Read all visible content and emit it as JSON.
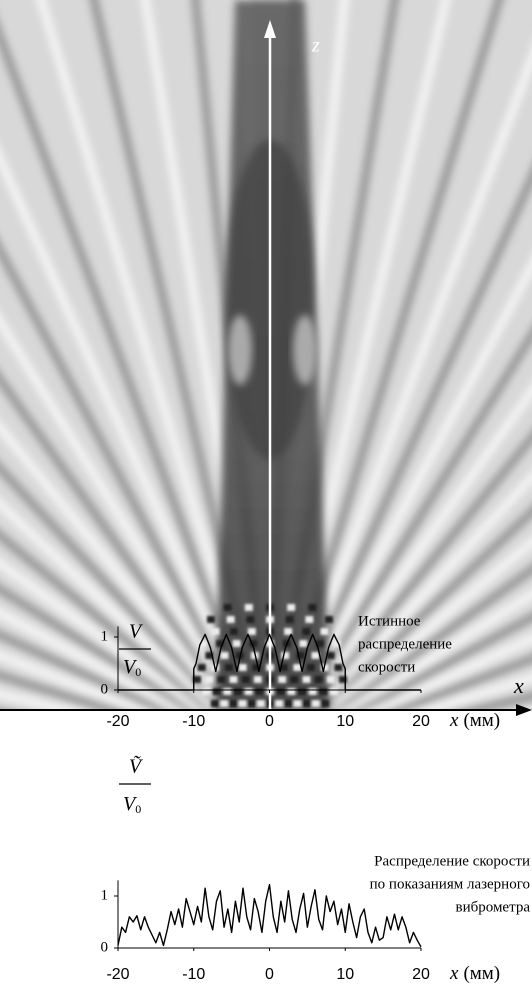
{
  "field_image": {
    "z_label": "z",
    "x_label": "x"
  },
  "chart_data": [
    {
      "type": "line",
      "y_label_numerator": "V",
      "y_label_denominator": "V",
      "y_label_subscript": "0",
      "x_label": "x",
      "x_unit": "(мм)",
      "annotation": [
        "Истинное",
        "распределение",
        "скорости"
      ],
      "xlim": [
        -20,
        20
      ],
      "xticks": [
        -20,
        -10,
        0,
        10,
        20
      ],
      "ylim": [
        0,
        1.2
      ],
      "yticks": [
        0,
        1
      ],
      "series": [
        {
          "color": "#000000",
          "x": [
            -20,
            -10,
            -10,
            -9.7,
            -9.2,
            -8.5,
            -7.8,
            -7.1,
            -6.4,
            -5.7,
            -5,
            -4.3,
            -3.6,
            -2.85,
            -2.1,
            -1.4,
            -0.7,
            0,
            0.7,
            1.4,
            2.1,
            2.85,
            3.6,
            4.3,
            5,
            5.7,
            6.4,
            7.1,
            7.8,
            8.5,
            9.2,
            9.7,
            10,
            10,
            20
          ],
          "values": [
            0,
            0,
            0.4,
            0.5,
            0.85,
            1.05,
            0.8,
            0.35,
            0.8,
            1.05,
            0.8,
            0.35,
            0.8,
            1.05,
            0.8,
            0.35,
            0.8,
            1.05,
            0.8,
            0.35,
            0.8,
            1.05,
            0.8,
            0.35,
            0.8,
            1.05,
            0.8,
            0.35,
            0.8,
            1.05,
            0.85,
            0.5,
            0.4,
            0,
            0
          ]
        }
      ]
    },
    {
      "type": "line",
      "y_label_numerator": "Ṽ",
      "y_label_denominator": "V",
      "y_label_subscript": "0",
      "x_label": "x",
      "x_unit": "(мм)",
      "annotation": [
        "Распределение скорости",
        "по показаниям лазерного",
        "виброметра"
      ],
      "xlim": [
        -20,
        20
      ],
      "xticks": [
        -20,
        -10,
        0,
        10,
        20
      ],
      "ylim": [
        0,
        1.3
      ],
      "yticks": [
        0,
        1
      ],
      "series": [
        {
          "color": "#000000",
          "x": [
            -20,
            -19.5,
            -19,
            -18.5,
            -18,
            -17.5,
            -17,
            -16.5,
            -16,
            -15.5,
            -15,
            -14.5,
            -14,
            -13.5,
            -13,
            -12.5,
            -12,
            -11.5,
            -11,
            -10.5,
            -10,
            -9.5,
            -9,
            -8.5,
            -8,
            -7.5,
            -7,
            -6.5,
            -6,
            -5.5,
            -5,
            -4.5,
            -4,
            -3.5,
            -3,
            -2.5,
            -2,
            -1.5,
            -1,
            -0.5,
            0,
            0.5,
            1,
            1.5,
            2,
            2.5,
            3,
            3.5,
            4,
            4.5,
            5,
            5.5,
            6,
            6.5,
            7,
            7.5,
            8,
            8.5,
            9,
            9.5,
            10,
            10.5,
            11,
            11.5,
            12,
            12.5,
            13,
            13.5,
            14,
            14.5,
            15,
            15.5,
            16,
            16.5,
            17,
            17.5,
            18,
            18.5,
            19,
            19.5,
            20
          ],
          "values": [
            0.05,
            0.4,
            0.3,
            0.6,
            0.5,
            0.62,
            0.35,
            0.6,
            0.4,
            0.25,
            0.1,
            0.3,
            0.05,
            0.35,
            0.7,
            0.45,
            0.75,
            0.4,
            0.95,
            0.7,
            0.45,
            0.8,
            0.5,
            1.15,
            0.6,
            0.35,
            0.9,
            1.1,
            0.4,
            0.75,
            0.3,
            0.9,
            0.5,
            1.15,
            0.6,
            0.35,
            0.95,
            0.7,
            0.3,
            0.9,
            1.22,
            0.6,
            0.3,
            0.9,
            0.5,
            1.1,
            0.55,
            0.3,
            0.75,
            1.05,
            0.4,
            0.8,
            1.12,
            0.55,
            0.35,
            1.0,
            0.7,
            0.9,
            0.45,
            0.75,
            0.3,
            0.85,
            0.5,
            0.2,
            0.6,
            0.75,
            0.3,
            0.1,
            0.4,
            0.15,
            0.2,
            0.6,
            0.35,
            0.65,
            0.35,
            0.6,
            0.4,
            0.1,
            0.3,
            0.15,
            0.02
          ]
        }
      ]
    }
  ]
}
